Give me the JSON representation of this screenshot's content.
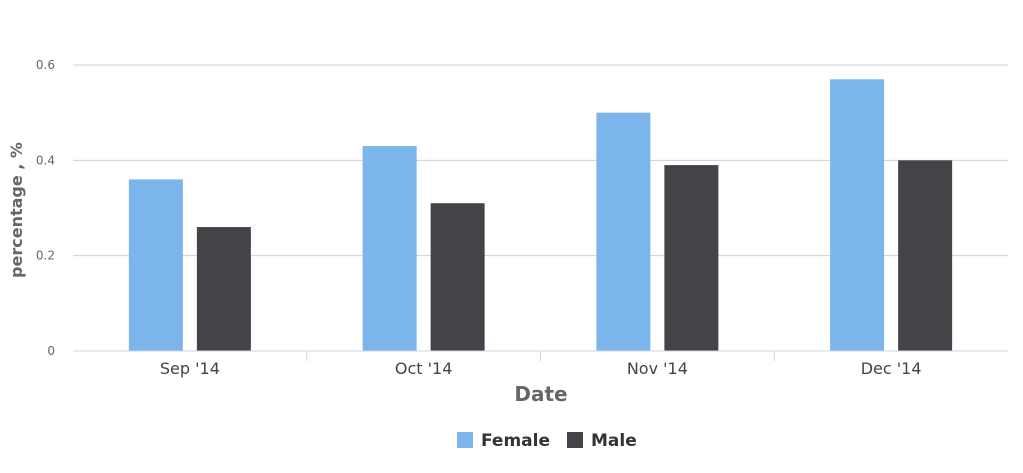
{
  "chart_data": {
    "type": "bar",
    "categories": [
      "Sep '14",
      "Oct '14",
      "Nov '14",
      "Dec '14"
    ],
    "series": [
      {
        "name": "Female",
        "color": "#7cb5ec",
        "values": [
          0.36,
          0.43,
          0.5,
          0.57
        ]
      },
      {
        "name": "Male",
        "color": "#434348",
        "values": [
          0.26,
          0.31,
          0.39,
          0.4
        ]
      }
    ],
    "title": "",
    "xlabel": "Date",
    "ylabel": "percentage , %",
    "ylim": [
      0,
      0.6
    ],
    "yticks": [
      "0",
      "0.2",
      "0.4",
      "0.6"
    ],
    "grid": true,
    "legend_position": "bottom-center"
  }
}
